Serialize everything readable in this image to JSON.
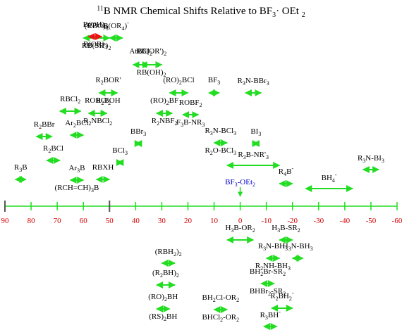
{
  "title": "11B NMR Chemical Shifts Relative to BF3· OEt 2",
  "colors": {
    "arrow": "#22dd22",
    "arrow_special": "#ee1111",
    "axis": "#22dd22",
    "tick_label": "#d40000",
    "reference": "#0000cc",
    "text": "#000000"
  },
  "axis": {
    "min": -60,
    "max": 90,
    "direction": "decreasing-left-to-right",
    "ticks": [
      90,
      80,
      70,
      60,
      50,
      40,
      30,
      20,
      10,
      0,
      -10,
      -20,
      -30,
      -40,
      -50,
      -60
    ],
    "tick_labels": [
      "90",
      "80",
      "70",
      "60",
      "50",
      "40",
      "30",
      "20",
      "10",
      "0",
      "-10",
      "-20",
      "-30",
      "-40",
      "-50",
      "-60"
    ],
    "dark_tick_values": [
      90,
      50
    ]
  },
  "reference": {
    "label": "BF3-OEt2",
    "shift": 0
  },
  "upper_groups": [
    {
      "labels": [
        "(RBO)3",
        "RB(SR')2"
      ],
      "range": [
        60,
        50
      ]
    },
    {
      "labels": [
        "B(OH)3",
        "B(OR)3"
      ],
      "range": [
        58,
        53
      ],
      "highlight": true
    },
    {
      "labels": [
        "B(OR4)-"
      ],
      "range": [
        50,
        45
      ]
    },
    {
      "labels": [
        "AtBCl2"
      ],
      "range": [
        41,
        35
      ]
    },
    {
      "labels": [
        "RB(OR')2",
        "RB(OH)2"
      ],
      "range": [
        38,
        30
      ]
    },
    {
      "labels": [
        "R2BOR'",
        "R2BOH"
      ],
      "range": [
        54,
        47
      ]
    },
    {
      "labels": [
        "(RO)2BCl"
      ],
      "range": [
        27,
        20
      ]
    },
    {
      "labels": [
        "BF3"
      ],
      "range": [
        12,
        8
      ]
    },
    {
      "labels": [
        "R3N-BBr3"
      ],
      "range": [
        -2,
        -8
      ]
    },
    {
      "labels": [
        "RBCl2"
      ],
      "range": [
        69,
        61
      ]
    },
    {
      "labels": [
        "ROBCl2",
        "R2NBCl2"
      ],
      "range": [
        58,
        51
      ]
    },
    {
      "labels": [
        "(RO)2BF",
        "R2NBF2"
      ],
      "range": [
        32,
        26
      ]
    },
    {
      "labels": [
        "ROBF2",
        "F3B-NR3"
      ],
      "range": [
        22,
        16
      ]
    },
    {
      "labels": [
        "R2BBr"
      ],
      "range": [
        78,
        72
      ]
    },
    {
      "labels": [
        "Ar2BCl"
      ],
      "range": [
        65,
        60
      ]
    },
    {
      "labels": [
        "BBr3"
      ],
      "range": [
        40,
        38
      ]
    },
    {
      "labels": [
        "R3N-BCl3",
        "R2O-BCl3"
      ],
      "range": [
        10,
        5
      ]
    },
    {
      "labels": [
        "BI3"
      ],
      "range": [
        -5,
        -7
      ]
    },
    {
      "labels": [
        "R2BCl"
      ],
      "range": [
        74,
        69
      ]
    },
    {
      "labels": [
        "BCl3"
      ],
      "range": [
        47,
        45
      ]
    },
    {
      "labels": [
        "R3B-NR'3"
      ],
      "range": [
        5,
        -15
      ]
    },
    {
      "labels": [
        "R3N-BI3"
      ],
      "range": [
        -47,
        -53
      ]
    },
    {
      "labels": [
        "R3B"
      ],
      "range": [
        86,
        82
      ]
    },
    {
      "labels": [
        "Ar3B",
        "(RCH=CH)3B"
      ],
      "range": [
        65,
        60
      ]
    },
    {
      "labels": [
        "RBXH"
      ],
      "range": [
        55,
        50
      ]
    },
    {
      "labels": [
        "R4B-"
      ],
      "range": [
        -15,
        -20
      ]
    },
    {
      "labels": [
        "BH4-"
      ],
      "range": [
        -25,
        -43
      ]
    }
  ],
  "lower_groups": [
    {
      "labels": [
        "H3B-OR2"
      ],
      "range": [
        5,
        -5
      ]
    },
    {
      "labels": [
        "H3B-SR2"
      ],
      "range": [
        -15,
        -20
      ]
    },
    {
      "labels": [
        "R3N-BH3",
        "R2NH-BH3"
      ],
      "range": [
        -10,
        -15
      ]
    },
    {
      "labels": [
        "H3N-BH3"
      ],
      "range": [
        -20,
        -24
      ]
    },
    {
      "labels": [
        "(RBH2)2"
      ],
      "range": [
        30,
        25
      ]
    },
    {
      "labels": [
        "BH2Br-SR2",
        "BHBr2-SR2"
      ],
      "range": [
        -8,
        -13
      ]
    },
    {
      "labels": [
        "(R2BH)2"
      ],
      "range": [
        32,
        25
      ]
    },
    {
      "labels": [
        "(RO)2BH",
        "(RS)2BH"
      ],
      "range": [
        32,
        27
      ]
    },
    {
      "labels": [
        "BH2Cl-OR2",
        "BHCl2-OR2"
      ],
      "range": [
        10,
        5
      ]
    },
    {
      "labels": [
        "R2BH2-"
      ],
      "range": [
        -12,
        -20
      ]
    },
    {
      "labels": [
        "R3BH-"
      ],
      "range": [
        -9,
        -14
      ]
    }
  ]
}
